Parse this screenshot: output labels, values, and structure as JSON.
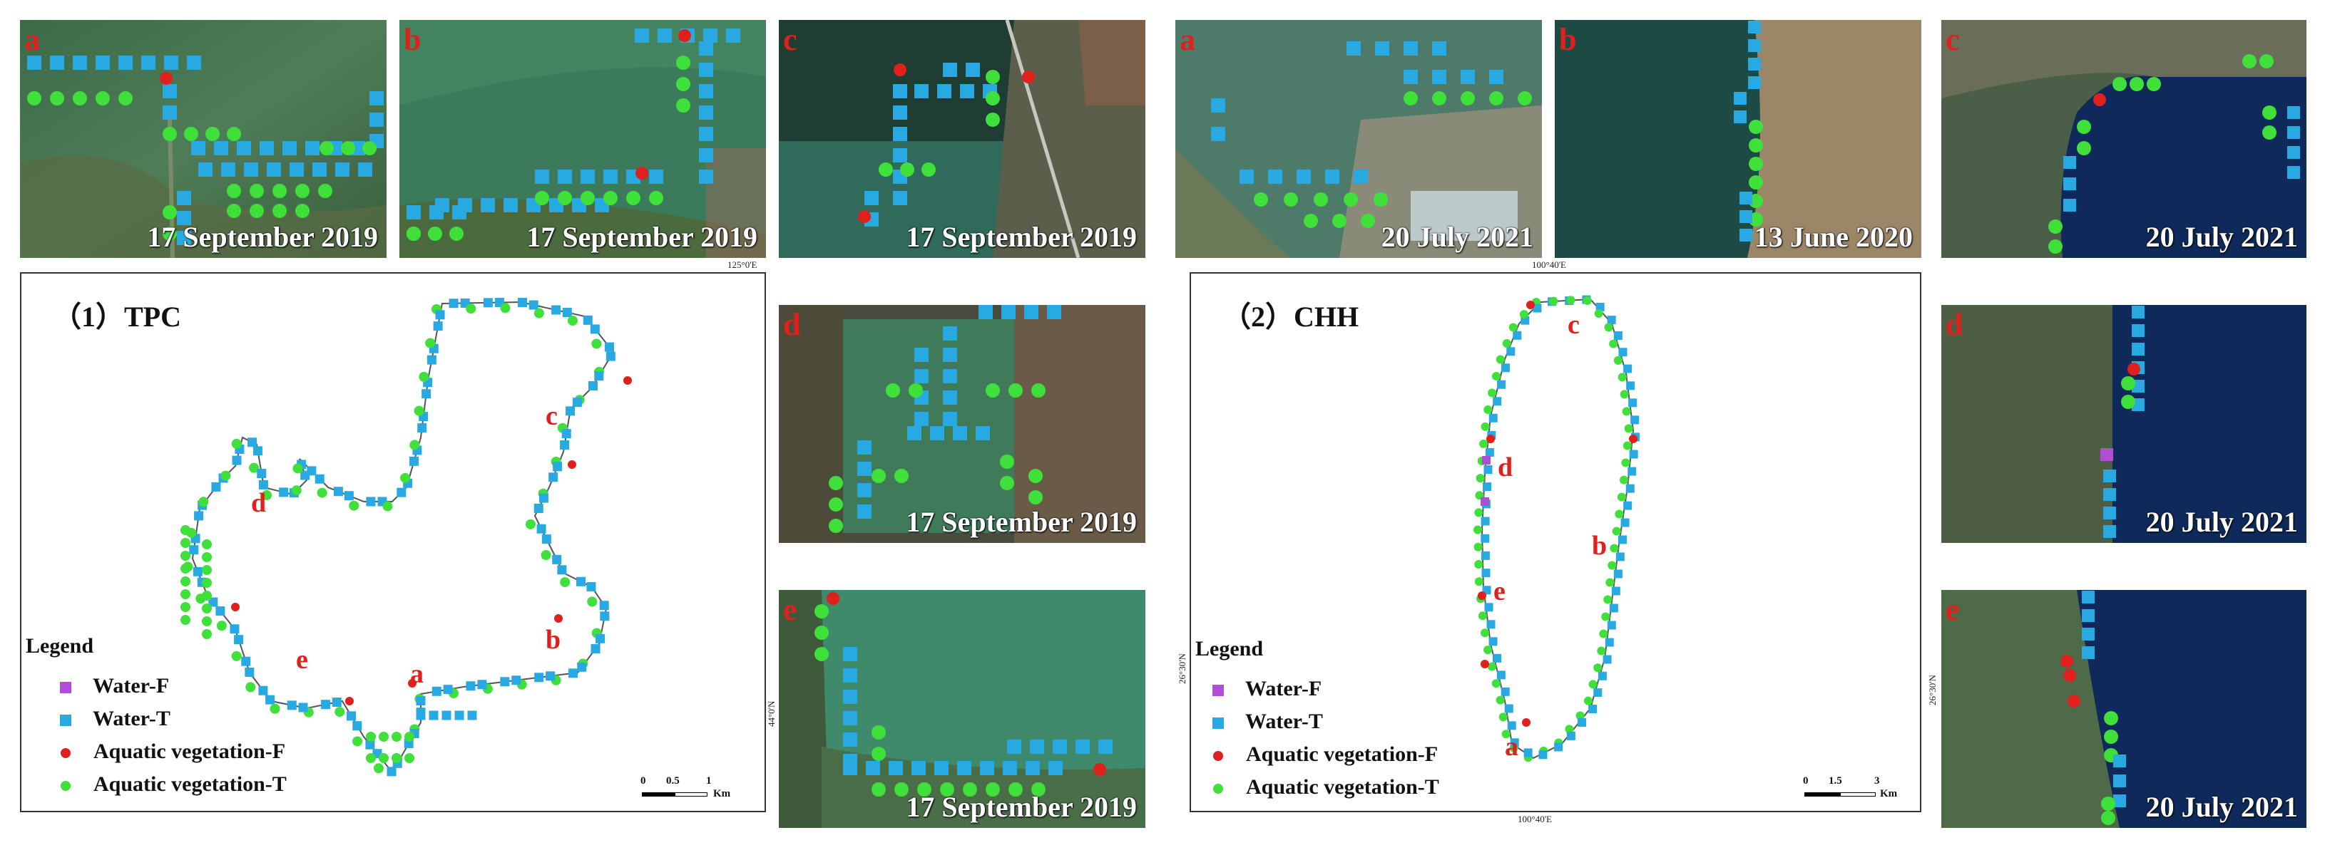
{
  "colors": {
    "water_f": "#b04fd6",
    "water_t": "#29a9e1",
    "veg_f": "#e0201c",
    "veg_t": "#3fe03a",
    "label": "#e0201c"
  },
  "tpc_tiles": [
    {
      "letter": "a",
      "date": "17 September 2019"
    },
    {
      "letter": "b",
      "date": "17 September 2019"
    },
    {
      "letter": "c",
      "date": "17 September 2019"
    },
    {
      "letter": "d",
      "date": "17 September 2019"
    },
    {
      "letter": "e",
      "date": "17 September 2019"
    }
  ],
  "chh_tiles": [
    {
      "letter": "a",
      "date": "20 July 2021"
    },
    {
      "letter": "b",
      "date": "13 June 2020"
    },
    {
      "letter": "c",
      "date": "20 July 2021"
    },
    {
      "letter": "d",
      "date": "20 July 2021"
    },
    {
      "letter": "e",
      "date": "20 July 2021"
    }
  ],
  "panel_tpc": {
    "title": "（1）TPC",
    "coord_top": "125°0'E",
    "coord_side": "44°0'N",
    "scale_labels": [
      "0",
      "0.5",
      "1",
      "Km"
    ],
    "map_labels": [
      "a",
      "b",
      "c",
      "d",
      "e"
    ]
  },
  "panel_chh": {
    "title": "（2）CHH",
    "coord_top": "100°40'E",
    "coord_bottom": "100°40'E",
    "coord_side": "26°30'N",
    "coord_side_right": "26°30'N",
    "scale_labels": [
      "0",
      "1.5",
      "3",
      "Km"
    ],
    "map_labels": [
      "a",
      "b",
      "c",
      "d",
      "e"
    ]
  },
  "legend": {
    "title": "Legend",
    "items": [
      {
        "label": "Water-F",
        "symbol": "square-purple"
      },
      {
        "label": "Water-T",
        "symbol": "square-blue"
      },
      {
        "label": "Aquatic vegetation-F",
        "symbol": "circle-red"
      },
      {
        "label": "Aquatic vegetation-T",
        "symbol": "circle-green"
      }
    ]
  }
}
